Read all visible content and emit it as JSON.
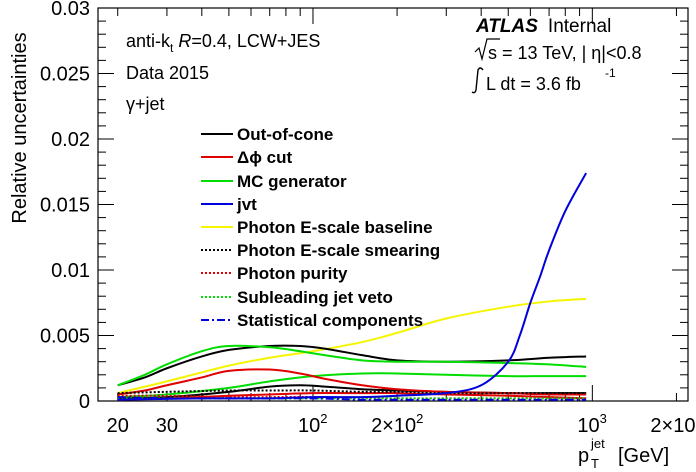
{
  "chart_data": {
    "type": "line",
    "ylabel": "Relative uncertainties",
    "xlabel_parts": {
      "base": "p",
      "sub": "T",
      "sup": "jet",
      "unit": "[GeV]"
    },
    "xscale": "log",
    "xlim": [
      17,
      2200
    ],
    "ylim": [
      0,
      0.03
    ],
    "y_ticks": [
      0,
      0.005,
      0.01,
      0.015,
      0.02,
      0.025,
      0.03
    ],
    "y_tick_labels": [
      "0",
      "0.005",
      "0.01",
      "0.015",
      "0.02",
      "0.025",
      "0.03"
    ],
    "x_tick_labels": [
      {
        "value": 20,
        "label": "20"
      },
      {
        "value": 30,
        "label": "30"
      },
      {
        "value": 100,
        "base": "10",
        "exp": "2"
      },
      {
        "value": 200,
        "base": "2×10",
        "exp": "2"
      },
      {
        "value": 1000,
        "base": "10",
        "exp": "3"
      },
      {
        "value": 2000,
        "base": "2×10",
        "exp": "3"
      }
    ],
    "annotations_left": {
      "line1_prefix": "anti-k",
      "line1_sub": "t",
      "line1_R": "R",
      "line1_rest": "=0.4, LCW+JES",
      "line2": "Data 2015",
      "line3": "γ+jet"
    },
    "annotations_right": {
      "atlas": "ATLAS",
      "internal": "Internal",
      "energy": "s = 13 TeV, |  η|<0.8",
      "lumi": "L dt = 3.6 fb",
      "lumi_sup": "-1"
    },
    "legend_placement": "center",
    "series": [
      {
        "name": "Out-of-cone",
        "color": "#000000",
        "style": "solid",
        "x": [
          20,
          25,
          30,
          40,
          50,
          70,
          90,
          110,
          150,
          200,
          300,
          500,
          700,
          950
        ],
        "y": [
          0.0012,
          0.0018,
          0.0025,
          0.0034,
          0.0039,
          0.0042,
          0.0042,
          0.004,
          0.0035,
          0.0031,
          0.003,
          0.0031,
          0.0033,
          0.0034
        ]
      },
      {
        "name": "Δϕ cut",
        "color": "#e00000",
        "style": "solid",
        "x": [
          20,
          25,
          30,
          40,
          50,
          70,
          90,
          110,
          150,
          200,
          300,
          500,
          700,
          950
        ],
        "y": [
          0.0005,
          0.0008,
          0.0012,
          0.0018,
          0.0023,
          0.0024,
          0.0021,
          0.0017,
          0.0012,
          0.0009,
          0.0007,
          0.0006,
          0.0005,
          0.0005
        ]
      },
      {
        "name": "MC generator",
        "color": "#00dd00",
        "style": "solid",
        "x": [
          20,
          25,
          30,
          40,
          50,
          70,
          90,
          110,
          150,
          200,
          300,
          500,
          700,
          950
        ],
        "y": [
          0.0012,
          0.002,
          0.0028,
          0.0038,
          0.0042,
          0.0041,
          0.0038,
          0.0035,
          0.0031,
          0.003,
          0.003,
          0.0029,
          0.0028,
          0.0026
        ]
      },
      {
        "name": "jvt",
        "color": "#0000dd",
        "style": "solid",
        "x": [
          20,
          40,
          70,
          100,
          150,
          200,
          300,
          400,
          500,
          550,
          600,
          650,
          700,
          800,
          950
        ],
        "y": [
          0.0001,
          0.0002,
          0.0002,
          0.0003,
          0.0003,
          0.0004,
          0.0006,
          0.0012,
          0.003,
          0.005,
          0.0075,
          0.0095,
          0.0115,
          0.0145,
          0.0174
        ]
      },
      {
        "name": "Photon E-scale baseline",
        "color": "#f5f500",
        "style": "solid",
        "x": [
          20,
          30,
          50,
          70,
          100,
          150,
          200,
          300,
          500,
          700,
          950
        ],
        "y": [
          0.0006,
          0.0015,
          0.0027,
          0.0033,
          0.0038,
          0.0045,
          0.0052,
          0.0063,
          0.0072,
          0.0076,
          0.0078
        ]
      },
      {
        "name": "Photon E-scale smearing",
        "color": "#000000",
        "style": "dotted",
        "x": [
          20,
          30,
          50,
          70,
          100,
          150,
          200,
          300,
          500,
          950
        ],
        "y": [
          0.0006,
          0.0007,
          0.0008,
          0.0008,
          0.0008,
          0.0007,
          0.0007,
          0.0006,
          0.0006,
          0.0006
        ]
      },
      {
        "name": "Photon purity",
        "color": "#e00000",
        "style": "dotted",
        "x": [
          20,
          30,
          50,
          70,
          100,
          150,
          200,
          300,
          500,
          950
        ],
        "y": [
          0.0004,
          0.0004,
          0.0003,
          0.0003,
          0.0003,
          0.0002,
          0.0002,
          0.0002,
          0.0002,
          0.0002
        ]
      },
      {
        "name": "Subleading jet veto",
        "color": "#00dd00",
        "style": "dotted",
        "x": [
          20,
          30,
          50,
          70,
          100,
          150,
          200,
          300,
          500,
          950
        ],
        "y": [
          0.0002,
          0.0002,
          0.0002,
          0.0002,
          0.0002,
          0.0002,
          0.0002,
          0.0002,
          0.0002,
          0.0002
        ]
      },
      {
        "name": "Statistical components",
        "color": "#0000dd",
        "style": "dashdot",
        "x": [
          20,
          30,
          50,
          70,
          100,
          150,
          200,
          300,
          500,
          950
        ],
        "y": [
          0.0003,
          0.0002,
          0.0002,
          0.0002,
          0.0002,
          0.0001,
          0.0001,
          0.0001,
          0.0001,
          0.0001
        ]
      }
    ],
    "extra_curves": [
      {
        "color": "#00dd00",
        "style": "solid",
        "x": [
          20,
          30,
          50,
          70,
          100,
          150,
          200,
          300,
          500,
          700,
          950
        ],
        "y": [
          0.0003,
          0.0005,
          0.001,
          0.0015,
          0.0019,
          0.0021,
          0.0021,
          0.002,
          0.0019,
          0.0019,
          0.0019
        ]
      },
      {
        "color": "#000000",
        "style": "solid",
        "x": [
          20,
          30,
          50,
          70,
          90,
          110,
          150,
          200,
          300,
          500,
          700,
          950
        ],
        "y": [
          0.0002,
          0.0003,
          0.0007,
          0.0011,
          0.0012,
          0.0011,
          0.0009,
          0.0008,
          0.0007,
          0.0006,
          0.0006,
          0.0006
        ]
      },
      {
        "color": "#e00000",
        "style": "solid",
        "x": [
          20,
          30,
          50,
          70,
          100,
          150,
          200,
          300,
          500,
          700,
          950
        ],
        "y": [
          0.0001,
          0.0002,
          0.0004,
          0.0005,
          0.0006,
          0.0006,
          0.0006,
          0.0005,
          0.0004,
          0.0003,
          0.0002
        ]
      }
    ]
  }
}
